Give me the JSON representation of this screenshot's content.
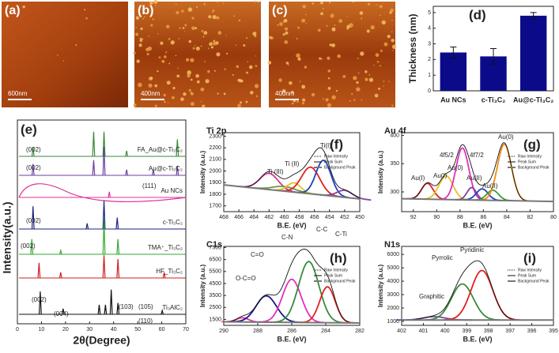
{
  "images": [
    {
      "label": "(a)",
      "scale": "600nm"
    },
    {
      "label": "(b)",
      "scale": "400nm"
    },
    {
      "label": "(c)",
      "scale": "400nm"
    }
  ],
  "chart_data": [
    {
      "type": "bar",
      "panel": "(d)",
      "ylabel": "Thickness (nm)",
      "categories": [
        "Au NCs",
        "c-Ti₃C₂",
        "Au@c-Ti₃C₂"
      ],
      "values": [
        2.45,
        2.2,
        4.8
      ],
      "errors": [
        0.35,
        0.5,
        0.2
      ],
      "color": "#0b0b8a",
      "ylim": [
        0,
        5.4
      ],
      "yticks": [
        0,
        1,
        2,
        3,
        4,
        5
      ]
    },
    {
      "type": "xrd",
      "panel": "(e)",
      "xlabel": "2θ(Degree)",
      "ylabel": "Intensity(a.u.)",
      "xlim": [
        0,
        70
      ],
      "xticks": [
        0,
        10,
        20,
        30,
        40,
        50,
        60,
        70
      ],
      "series": [
        {
          "name": "FA_Au@c-Ti₃C₂",
          "color": "#3a8a3a",
          "x": [
            6.5,
            31.7,
            36,
            45.4,
            66.5
          ],
          "values": [
            0.5,
            1.3,
            1.3,
            0.3,
            0.9
          ]
        },
        {
          "name": "Au@c-Ti₃C₂",
          "color": "#6b3fa0",
          "x": [
            6.5,
            31.7,
            36,
            45.4,
            56.5,
            66.5
          ],
          "values": [
            0.6,
            0.8,
            1.5,
            0.3,
            0.3,
            0.5
          ]
        },
        {
          "name": "Au NCs",
          "color": "#e0309a",
          "x": [
            38.2
          ],
          "values": [
            0.3
          ]
        },
        {
          "name": "c-Ti₃C₂",
          "color": "#1a237e",
          "x": [
            6.5,
            29,
            36,
            41.5
          ],
          "values": [
            1.2,
            0.3,
            1.5,
            0.6
          ]
        },
        {
          "name": "TMA⁺_Ti₃C₂",
          "color": "#33aa33",
          "x": [
            6,
            18,
            36,
            41.8
          ],
          "values": [
            0.8,
            0.2,
            1.8,
            0.8
          ]
        },
        {
          "name": "HF_Ti₃C₂",
          "color": "#d02020",
          "x": [
            9,
            18,
            36,
            41.8,
            61
          ],
          "values": [
            0.8,
            0.3,
            1.2,
            1.0,
            0.3
          ]
        },
        {
          "name": "Ti₃AlC₂",
          "color": "#111111",
          "x": [
            9.5,
            19,
            34,
            36.6,
            39,
            41.8,
            60.2
          ],
          "values": [
            1.2,
            0.3,
            0.5,
            0.5,
            1.3,
            0.6,
            0.2
          ]
        }
      ],
      "annotations": [
        "(002)",
        "(002)",
        "(111)",
        "(002)",
        "(002)",
        "(002)",
        "(004)",
        "(103)",
        "(105)",
        "(110)"
      ]
    },
    {
      "type": "xps",
      "panel": "(f)",
      "title": "Ti 2p",
      "xlabel": "B.E. (eV)",
      "ylabel": "Intensity (a.u.)",
      "xlim": [
        468,
        450
      ],
      "xticks": [
        468,
        466,
        464,
        462,
        460,
        458,
        456,
        454,
        452,
        450
      ],
      "ylim": [
        1650,
        2330
      ],
      "yticks": [
        1700,
        1800,
        1900,
        2000,
        2100,
        2200,
        2300
      ],
      "legend": [
        "Raw Intensity",
        "Peak Sum",
        "Background Peak"
      ],
      "background": {
        "x": [
          468,
          450
        ],
        "values": [
          1880,
          1760
        ]
      },
      "peaks": [
        {
          "color": "#e0309a",
          "center": 462,
          "height": 140,
          "width": 1.2
        },
        {
          "color": "#6a9a3a",
          "center": 460,
          "height": 40,
          "width": 1.5
        },
        {
          "color": "#e8c020",
          "center": 458.7,
          "height": 80,
          "width": 0.9
        },
        {
          "color": "#e02020",
          "center": 456.5,
          "height": 230,
          "width": 1.2
        },
        {
          "color": "#2040c0",
          "center": 454.8,
          "height": 300,
          "width": 1.0
        },
        {
          "color": "#8040a0",
          "center": 452,
          "height": 60,
          "width": 1.0
        }
      ],
      "annotations": [
        "Ti (III)",
        "Ti (II)",
        "Ti(I)"
      ]
    },
    {
      "type": "xps",
      "panel": "(g)",
      "title": "Au 4f",
      "xlabel": "B.E. (eV)",
      "ylabel": "Intensity (a.u.)",
      "xlim": [
        93,
        80
      ],
      "xticks": [
        92,
        90,
        88,
        86,
        84,
        82,
        80
      ],
      "ylim": [
        265,
        405
      ],
      "yticks": [
        300,
        350,
        400
      ],
      "legend": [
        "Raw Intensity",
        "Peak Sum",
        "Background Peak"
      ],
      "background": {
        "x": [
          93,
          80
        ],
        "values": [
          288,
          283
        ]
      },
      "peaks": [
        {
          "color": "#e02020",
          "center": 90.8,
          "height": 28,
          "width": 0.5
        },
        {
          "color": "#e8c020",
          "center": 89.2,
          "height": 42,
          "width": 0.6
        },
        {
          "color": "#e030c0",
          "center": 87.8,
          "height": 92,
          "width": 0.55
        },
        {
          "color": "#8040a0",
          "center": 87,
          "height": 22,
          "width": 0.4
        },
        {
          "color": "#2040c0",
          "center": 86.1,
          "height": 20,
          "width": 0.5
        },
        {
          "color": "#3a9a3a",
          "center": 85.2,
          "height": 18,
          "width": 0.5
        },
        {
          "color": "#f08a10",
          "center": 84.2,
          "height": 100,
          "width": 0.6
        }
      ],
      "annotations": [
        "4f5/2",
        "4f7/2",
        "Au(0)",
        "Au(0)",
        "Au(I)",
        "Au(I)",
        "Au(II)",
        "Au(II)"
      ]
    },
    {
      "type": "xps",
      "panel": "(h)",
      "title": "C1s",
      "xlabel": "B.E. (eV)",
      "ylabel": "Intensity (a.u.)",
      "xlim": [
        290,
        282
      ],
      "xticks": [
        290,
        288,
        286,
        284,
        282
      ],
      "ylim": [
        1000,
        7600
      ],
      "yticks": [
        1500,
        2500,
        3500,
        4500,
        5500,
        6500,
        7500
      ],
      "legend": [
        "Raw Intensity",
        "Peak Sum",
        "Background Peak"
      ],
      "background": {
        "x": [
          290,
          282
        ],
        "values": [
          1300,
          1200
        ]
      },
      "peaks": [
        {
          "color": "#e0309a",
          "center": 288.9,
          "height": 350,
          "width": 0.35
        },
        {
          "color": "#1a1a8a",
          "center": 287.5,
          "height": 2200,
          "width": 0.6
        },
        {
          "color": "#e030c0",
          "center": 286,
          "height": 3600,
          "width": 0.55
        },
        {
          "color": "#3a8a3a",
          "center": 285,
          "height": 5100,
          "width": 0.6
        },
        {
          "color": "#e02020",
          "center": 283.9,
          "height": 3000,
          "width": 0.45
        }
      ],
      "annotations": [
        "O-C=O",
        "C=O",
        "C-N",
        "C-C",
        "C-Ti"
      ]
    },
    {
      "type": "xps",
      "panel": "(i)",
      "title": "N1s",
      "xlabel": "B.E. (eV)",
      "ylabel": "Intensity (a.u.)",
      "xlim": [
        402,
        395
      ],
      "xticks": [
        402,
        401,
        400,
        399,
        398,
        397,
        396,
        395
      ],
      "ylim": [
        700,
        6600
      ],
      "yticks": [
        1000,
        2000,
        3000,
        4000,
        5000,
        6000
      ],
      "legend": [
        "Raw Intensity",
        "Peak Sum",
        "Background Peak"
      ],
      "background": {
        "x": [
          402,
          395
        ],
        "values": [
          1100,
          1100
        ]
      },
      "peaks": [
        {
          "color": "#8040a0",
          "center": 400.5,
          "height": 250,
          "width": 0.5
        },
        {
          "color": "#3a8a3a",
          "center": 399.2,
          "height": 2700,
          "width": 0.5
        },
        {
          "color": "#e02020",
          "center": 398.3,
          "height": 3700,
          "width": 0.5
        }
      ],
      "annotations": [
        "Graphitic",
        "Pyrrolic",
        "Pyridinic"
      ]
    }
  ]
}
